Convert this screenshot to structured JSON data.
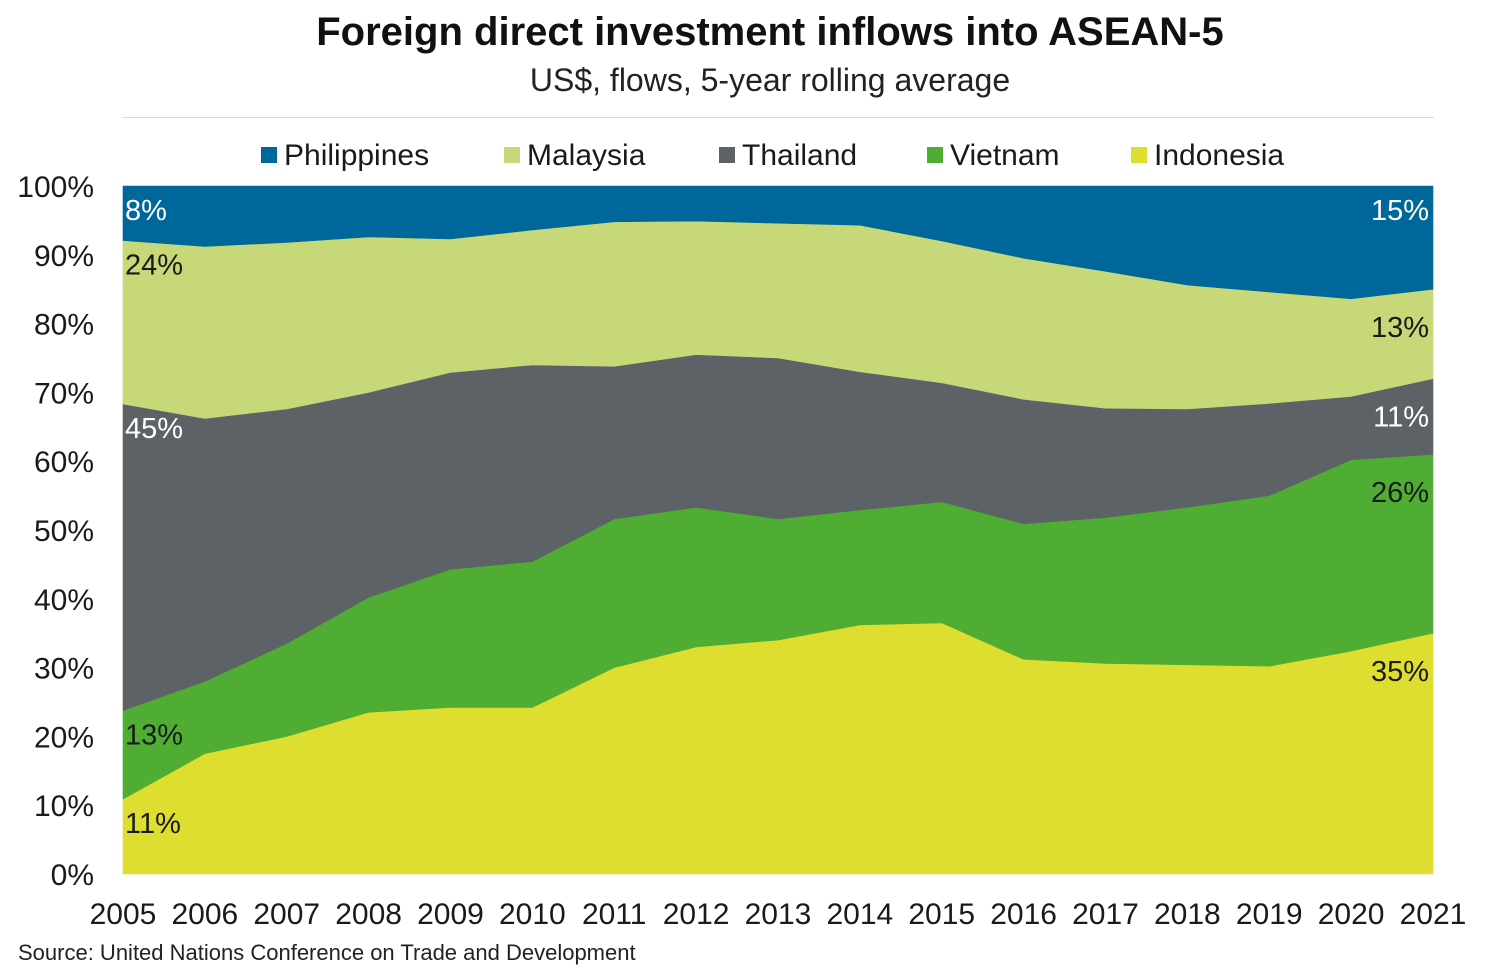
{
  "title": "Foreign direct investment inflows into ASEAN-5",
  "subtitle": "US$, flows, 5-year rolling average",
  "source": "Source: United Nations Conference on Trade and Development",
  "chart_data": {
    "type": "area",
    "stacked": true,
    "title": "Foreign direct investment inflows into ASEAN-5",
    "subtitle": "US$, flows, 5-year rolling average",
    "xlabel": "",
    "ylabel": "",
    "ylim": [
      0,
      100
    ],
    "y_ticks": [
      "0%",
      "10%",
      "20%",
      "30%",
      "40%",
      "50%",
      "60%",
      "70%",
      "80%",
      "90%",
      "100%"
    ],
    "categories": [
      "2005",
      "2006",
      "2007",
      "2008",
      "2009",
      "2010",
      "2011",
      "2012",
      "2013",
      "2014",
      "2015",
      "2016",
      "2017",
      "2018",
      "2019",
      "2020",
      "2021"
    ],
    "legend_position": "top",
    "grid": false,
    "series": [
      {
        "name": "Indonesia",
        "color": "#dede31",
        "values": [
          11,
          17.5,
          20,
          23.5,
          24.2,
          24.2,
          30,
          33,
          34,
          36.2,
          36.5,
          31.2,
          30.6,
          30.4,
          30.2,
          32.4,
          35
        ]
      },
      {
        "name": "Vietnam",
        "color": "#4fad33",
        "values": [
          13,
          10.5,
          13.5,
          16.7,
          20.1,
          21.2,
          21.6,
          20.3,
          17.6,
          16.7,
          17.6,
          19.7,
          21.2,
          22.9,
          24.8,
          27.8,
          26
        ]
      },
      {
        "name": "Thailand",
        "color": "#5d6266",
        "values": [
          45,
          38.2,
          34.1,
          29.8,
          28.6,
          28.6,
          22.2,
          22.2,
          23.4,
          20.1,
          17.3,
          18.1,
          15.9,
          14.3,
          13.4,
          9.2,
          11
        ]
      },
      {
        "name": "Malaysia",
        "color": "#c6d877",
        "values": [
          24,
          25,
          24.2,
          22.6,
          19.4,
          19.6,
          21,
          19.4,
          19.6,
          21.3,
          20.6,
          20.5,
          19.9,
          18,
          16.2,
          14.2,
          13
        ]
      },
      {
        "name": "Philippines",
        "color": "#00679a",
        "values": [
          8,
          8.8,
          8.2,
          7.4,
          7.7,
          6.4,
          5.2,
          5.1,
          5.4,
          5.7,
          8,
          10.5,
          12.4,
          14.4,
          15.4,
          16.4,
          15
        ]
      }
    ],
    "annotations": [
      {
        "series": "Philippines",
        "end": "start",
        "text": "8%",
        "color": "#ffffff"
      },
      {
        "series": "Malaysia",
        "end": "start",
        "text": "24%",
        "color": "#1a1a1a"
      },
      {
        "series": "Thailand",
        "end": "start",
        "text": "45%",
        "color": "#ffffff"
      },
      {
        "series": "Vietnam",
        "end": "start",
        "text": "13%",
        "color": "#1a1a1a"
      },
      {
        "series": "Indonesia",
        "end": "start",
        "text": "11%",
        "color": "#1a1a1a"
      },
      {
        "series": "Philippines",
        "end": "end",
        "text": "15%",
        "color": "#ffffff"
      },
      {
        "series": "Malaysia",
        "end": "end",
        "text": "13%",
        "color": "#1a1a1a"
      },
      {
        "series": "Thailand",
        "end": "end",
        "text": "11%",
        "color": "#ffffff"
      },
      {
        "series": "Vietnam",
        "end": "end",
        "text": "26%",
        "color": "#1a1a1a"
      },
      {
        "series": "Indonesia",
        "end": "end",
        "text": "35%",
        "color": "#1a1a1a"
      }
    ]
  }
}
